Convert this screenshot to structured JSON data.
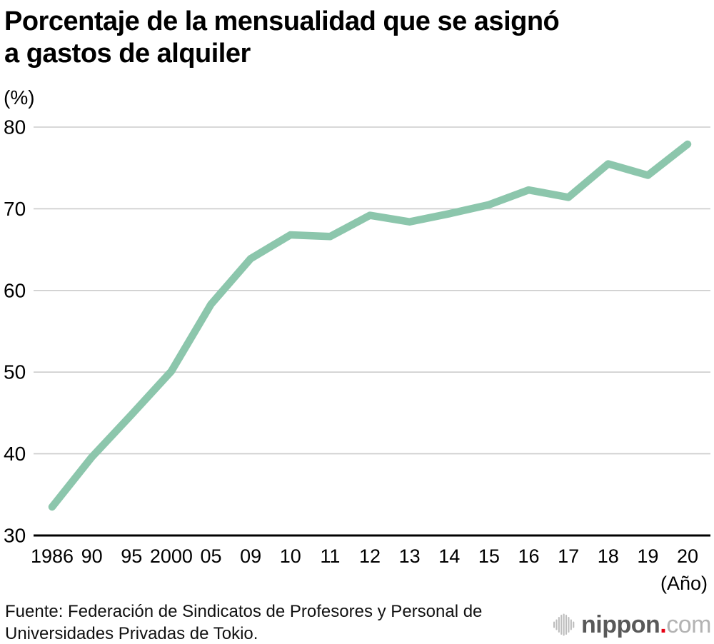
{
  "header": {
    "title_line1": "Porcentaje de la mensualidad que se asignó",
    "title_line2": "a gastos de alquiler"
  },
  "chart_data": {
    "type": "line",
    "title": "Porcentaje de la mensualidad que se asignó a gastos de alquiler",
    "unit_label": "(%)",
    "x_axis_label": "(Año)",
    "categories": [
      "1986",
      "90",
      "95",
      "2000",
      "05",
      "09",
      "10",
      "11",
      "12",
      "13",
      "14",
      "15",
      "16",
      "17",
      "18",
      "19",
      "20"
    ],
    "values": [
      33.5,
      39.6,
      44.8,
      50.1,
      58.3,
      63.9,
      66.8,
      66.6,
      69.2,
      68.4,
      69.4,
      70.5,
      72.3,
      71.4,
      75.5,
      74.1,
      77.9
    ],
    "y_ticks": [
      30,
      40,
      50,
      60,
      70,
      80
    ],
    "ylim": [
      30,
      80
    ],
    "grid": true,
    "legend": false,
    "line_color": "#8cc6ac",
    "grid_color": "#cccccc",
    "axis_color": "#000000",
    "tick_label_color": "#000000"
  },
  "footer": {
    "source_line1": "Fuente: Federación de Sindicatos de Profesores y Personal de",
    "source_line2": "Universidades Privadas de Tokio.",
    "logo": {
      "name": "nippon",
      "dot": ".",
      "com": "com",
      "name_color": "#595959",
      "dot_color": "#e60012",
      "com_color": "#b3b3b3",
      "icon_color": "#bdbdbd"
    }
  }
}
